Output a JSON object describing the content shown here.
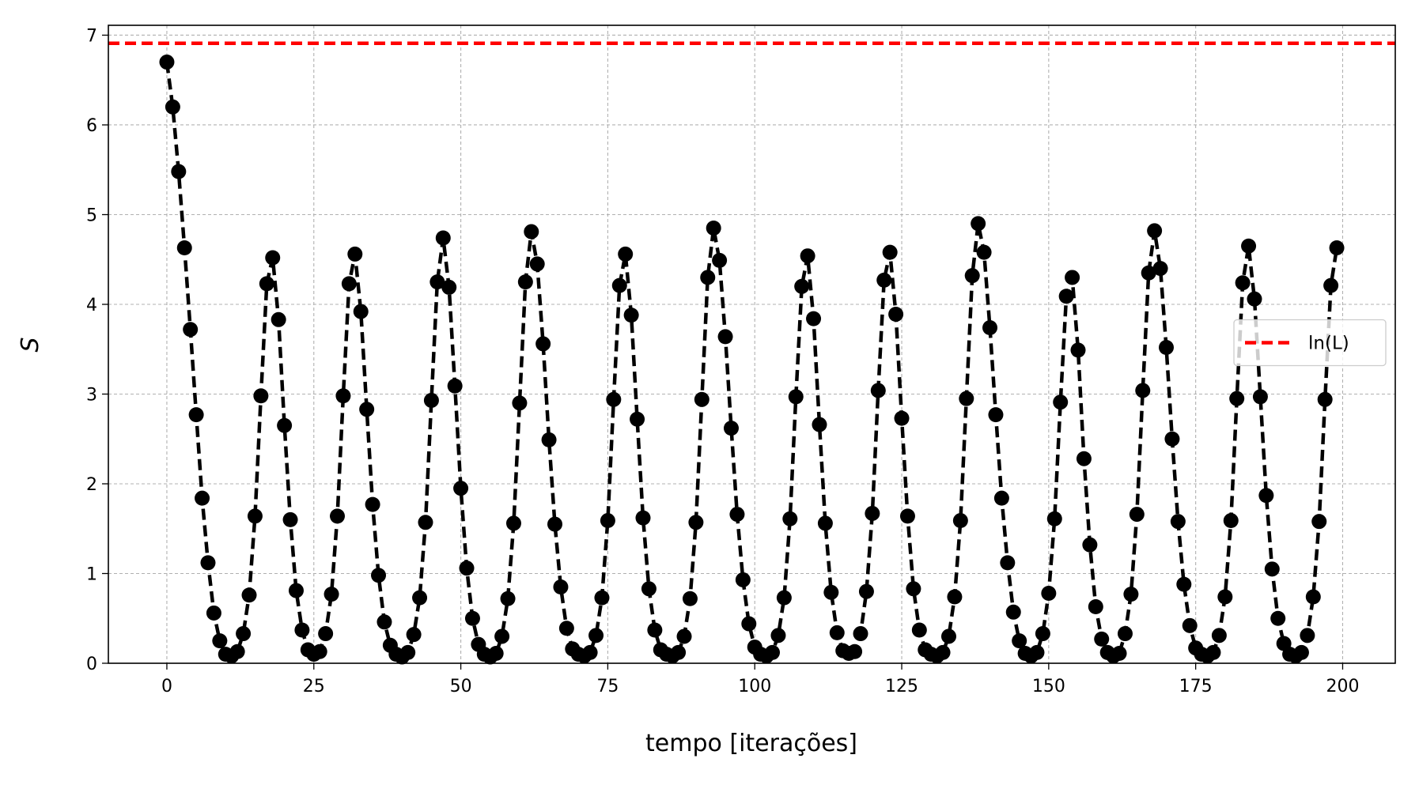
{
  "chart_data": {
    "type": "line",
    "x_label": "tempo [iterações]",
    "y_label": "S",
    "x": [
      0,
      1,
      2,
      3,
      4,
      5,
      6,
      7,
      8,
      9,
      10,
      11,
      12,
      13,
      14,
      15,
      16,
      17,
      18,
      19,
      20,
      21,
      22,
      23,
      24,
      25,
      26,
      27,
      28,
      29,
      30,
      31,
      32,
      33,
      34,
      35,
      36,
      37,
      38,
      39,
      40,
      41,
      42,
      43,
      44,
      45,
      46,
      47,
      48,
      49,
      50,
      51,
      52,
      53,
      54,
      55,
      56,
      57,
      58,
      59,
      60,
      61,
      62,
      63,
      64,
      65,
      66,
      67,
      68,
      69,
      70,
      71,
      72,
      73,
      74,
      75,
      76,
      77,
      78,
      79,
      80,
      81,
      82,
      83,
      84,
      85,
      86,
      87,
      88,
      89,
      90,
      91,
      92,
      93,
      94,
      95,
      96,
      97,
      98,
      99,
      100,
      101,
      102,
      103,
      104,
      105,
      106,
      107,
      108,
      109,
      110,
      111,
      112,
      113,
      114,
      115,
      116,
      117,
      118,
      119,
      120,
      121,
      122,
      123,
      124,
      125,
      126,
      127,
      128,
      129,
      130,
      131,
      132,
      133,
      134,
      135,
      136,
      137,
      138,
      139,
      140,
      141,
      142,
      143,
      144,
      145,
      146,
      147,
      148,
      149,
      150,
      151,
      152,
      153,
      154,
      155,
      156,
      157,
      158,
      159,
      160,
      161,
      162,
      163,
      164,
      165,
      166,
      167,
      168,
      169,
      170,
      171,
      172,
      173,
      174,
      175,
      176,
      177,
      178,
      179,
      180,
      181,
      182,
      183,
      184,
      185,
      186,
      187,
      188,
      189,
      190,
      191,
      192,
      193,
      194,
      195,
      196,
      197,
      198,
      199
    ],
    "series": [
      {
        "color": "#000000",
        "line_style": "dashed",
        "marker": "circle",
        "values": [
          6.7,
          6.2,
          5.48,
          4.63,
          3.72,
          2.77,
          1.84,
          1.12,
          0.56,
          0.25,
          0.1,
          0.08,
          0.13,
          0.33,
          0.76,
          1.64,
          2.98,
          4.23,
          4.52,
          3.83,
          2.65,
          1.6,
          0.81,
          0.37,
          0.15,
          0.1,
          0.13,
          0.33,
          0.77,
          1.64,
          2.98,
          4.23,
          4.56,
          3.92,
          2.83,
          1.77,
          0.98,
          0.46,
          0.2,
          0.1,
          0.07,
          0.12,
          0.32,
          0.73,
          1.57,
          2.93,
          4.25,
          4.74,
          4.19,
          3.09,
          1.95,
          1.06,
          0.5,
          0.21,
          0.1,
          0.07,
          0.11,
          0.3,
          0.72,
          1.56,
          2.9,
          4.25,
          4.81,
          4.45,
          3.56,
          2.49,
          1.55,
          0.85,
          0.39,
          0.16,
          0.1,
          0.08,
          0.12,
          0.31,
          0.73,
          1.59,
          2.94,
          4.21,
          4.56,
          3.88,
          2.72,
          1.62,
          0.83,
          0.37,
          0.15,
          0.1,
          0.08,
          0.12,
          0.3,
          0.72,
          1.57,
          2.94,
          4.3,
          4.85,
          4.49,
          3.64,
          2.62,
          1.66,
          0.93,
          0.44,
          0.18,
          0.1,
          0.08,
          0.12,
          0.31,
          0.73,
          1.61,
          2.97,
          4.2,
          4.54,
          3.84,
          2.66,
          1.56,
          0.79,
          0.34,
          0.14,
          0.11,
          0.13,
          0.33,
          0.8,
          1.67,
          3.04,
          4.27,
          4.58,
          3.89,
          2.73,
          1.64,
          0.83,
          0.37,
          0.15,
          0.1,
          0.08,
          0.12,
          0.3,
          0.74,
          1.59,
          2.95,
          4.32,
          4.9,
          4.58,
          3.74,
          2.77,
          1.84,
          1.12,
          0.57,
          0.25,
          0.11,
          0.08,
          0.12,
          0.33,
          0.78,
          1.61,
          2.91,
          4.09,
          4.3,
          3.49,
          2.28,
          1.32,
          0.63,
          0.27,
          0.12,
          0.08,
          0.11,
          0.33,
          0.77,
          1.66,
          3.04,
          4.35,
          4.82,
          4.4,
          3.52,
          2.5,
          1.58,
          0.88,
          0.42,
          0.17,
          0.1,
          0.08,
          0.12,
          0.31,
          0.74,
          1.59,
          2.95,
          4.24,
          4.65,
          4.06,
          2.97,
          1.87,
          1.05,
          0.5,
          0.22,
          0.1,
          0.08,
          0.12,
          0.31,
          0.74,
          1.58,
          2.94,
          4.21,
          4.63
        ]
      }
    ],
    "reference_line": {
      "name": "ln(L)",
      "value": 6.91,
      "color": "#ff0000",
      "line_style": "dashed"
    },
    "xlim": [
      -9.95,
      208.95
    ],
    "xticks": [
      0,
      25,
      50,
      75,
      100,
      125,
      150,
      175,
      200
    ],
    "ylim": [
      0,
      7.11
    ],
    "yticks": [
      0,
      1,
      2,
      3,
      4,
      5,
      6,
      7
    ],
    "grid": true,
    "legend_position": "center right"
  }
}
